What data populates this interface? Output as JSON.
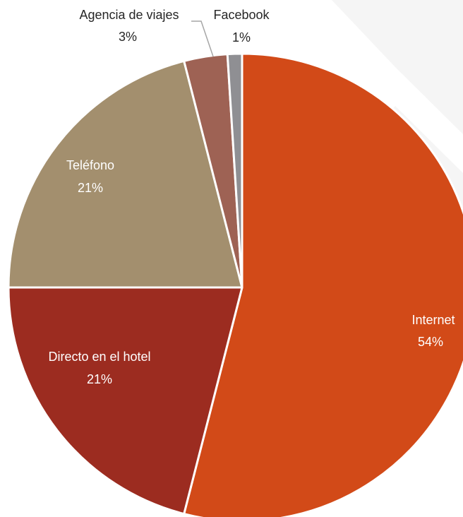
{
  "chart_data": {
    "type": "pie",
    "direction": "clockwise",
    "legend": "none",
    "categories": [
      "Internet",
      "Directo en el hotel",
      "Teléfono",
      "Agencia de viajes",
      "Facebook"
    ],
    "values": [
      54,
      21,
      21,
      3,
      1
    ],
    "value_unit": "%",
    "data_labels": [
      "54%",
      "21%",
      "21%",
      "3%",
      "1%"
    ],
    "colors": [
      "#D24A18",
      "#9C2C20",
      "#A38F6E",
      "#9E6254",
      "#8F8F93"
    ]
  }
}
